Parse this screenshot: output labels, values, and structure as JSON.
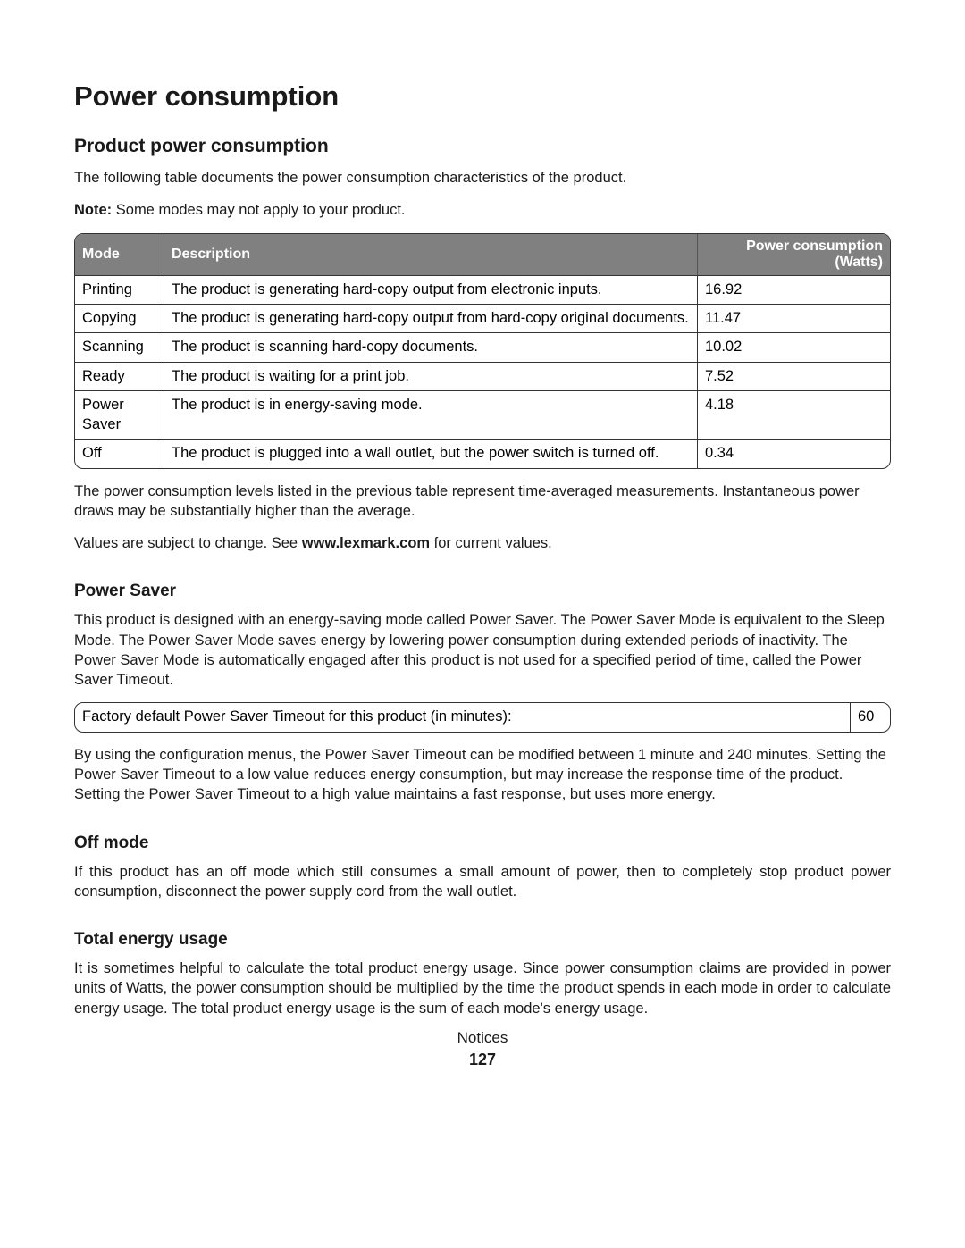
{
  "title": "Power consumption",
  "sections": {
    "product_power": {
      "heading": "Product power consumption",
      "intro": "The following table documents the power consumption characteristics of the product.",
      "note_label": "Note:",
      "note_text": " Some modes may not apply to your product.",
      "table": {
        "background_color": "#808080",
        "header_text_color": "#ffffff",
        "columns": [
          "Mode",
          "Description",
          "Power consumption (Watts)"
        ],
        "rows": [
          {
            "mode": "Printing",
            "description": "The product is generating hard-copy output from electronic inputs.",
            "watts": "16.92"
          },
          {
            "mode": "Copying",
            "description": "The product is generating hard-copy output from hard-copy original documents.",
            "watts": "11.47"
          },
          {
            "mode": "Scanning",
            "description": "The product is scanning hard-copy documents.",
            "watts": "10.02"
          },
          {
            "mode": "Ready",
            "description": "The product is waiting for a print job.",
            "watts": "7.52"
          },
          {
            "mode": "Power Saver",
            "description": "The product is in energy-saving mode.",
            "watts": "4.18"
          },
          {
            "mode": "Off",
            "description": "The product is plugged into a wall outlet, but the power switch is turned off.",
            "watts": "0.34"
          }
        ]
      },
      "after_table_p1": "The power consumption levels listed in the previous table represent time-averaged measurements. Instantaneous power draws may be substantially higher than the average.",
      "values_prefix": "Values are subject to change. See ",
      "values_link": "www.lexmark.com",
      "values_suffix": " for current values."
    },
    "power_saver": {
      "heading": "Power Saver",
      "p1": "This product is designed with an energy-saving mode called Power Saver. The Power Saver Mode is equivalent to the Sleep Mode. The Power Saver Mode saves energy by lowering power consumption during extended periods of inactivity. The Power Saver Mode is automatically engaged after this product is not used for a specified period of time, called the Power Saver Timeout.",
      "timeout_table": {
        "label": "Factory default Power Saver Timeout for this product (in minutes):",
        "value": "60"
      },
      "p2": "By using the configuration menus, the Power Saver Timeout can be modified between 1 minute and 240 minutes. Setting the Power Saver Timeout to a low value reduces energy consumption, but may increase the response time of the product. Setting the Power Saver Timeout to a high value maintains a fast response, but uses more energy."
    },
    "off_mode": {
      "heading": "Off mode",
      "p1": "If this product has an off mode which still consumes a small amount of power, then to completely stop product power consumption, disconnect the power supply cord from the wall outlet."
    },
    "total_energy": {
      "heading": "Total energy usage",
      "p1": "It is sometimes helpful to calculate the total product energy usage. Since power consumption claims are provided in power units of Watts, the power consumption should be multiplied by the time the product spends in each mode in order to calculate energy usage. The total product energy usage is the sum of each mode's energy usage."
    }
  },
  "footer": {
    "section": "Notices",
    "page": "127"
  }
}
